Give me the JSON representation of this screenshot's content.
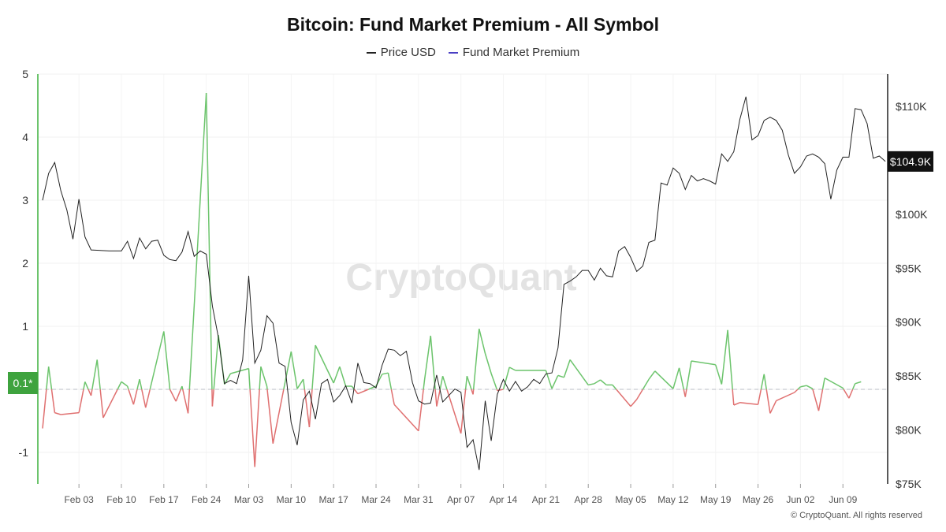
{
  "title": "Bitcoin: Fund Market Premium - All Symbol",
  "legend": [
    {
      "label": "Price USD",
      "color": "#222222"
    },
    {
      "label": "Fund Market Premium",
      "color": "#4a3fc4"
    }
  ],
  "watermark": "CryptoQuant",
  "copyright": "© CryptoQuant. All rights reserved",
  "price_badge": "$104.9K",
  "premium_badge": "0.1*",
  "colors": {
    "premium_positive": "#6cc46c",
    "premium_negative": "#e07070",
    "price": "#222222",
    "badge_green": "#3ea33e",
    "badge_dark": "#111111"
  },
  "chart_data": {
    "type": "line",
    "title": "Bitcoin: Fund Market Premium - All Symbol",
    "x_start": "2025-01-28",
    "x_end": "2025-06-13",
    "x_tick_labels": [
      "Feb 03",
      "Feb 10",
      "Feb 17",
      "Feb 24",
      "Mar 03",
      "Mar 10",
      "Mar 17",
      "Mar 24",
      "Mar 31",
      "Apr 07",
      "Apr 14",
      "Apr 21",
      "Apr 28",
      "May 05",
      "May 12",
      "May 19",
      "May 26",
      "Jun 02",
      "Jun 09"
    ],
    "x_tick_dates": [
      "2025-02-03",
      "2025-02-10",
      "2025-02-17",
      "2025-02-24",
      "2025-03-03",
      "2025-03-10",
      "2025-03-17",
      "2025-03-24",
      "2025-03-31",
      "2025-04-07",
      "2025-04-14",
      "2025-04-21",
      "2025-04-28",
      "2025-05-05",
      "2025-05-12",
      "2025-05-19",
      "2025-05-26",
      "2025-06-02",
      "2025-06-09"
    ],
    "y_left": {
      "min": -1.5,
      "max": 5,
      "ticks": [
        -1,
        0,
        1,
        2,
        3,
        4,
        5
      ],
      "tick_labels": [
        "-1",
        "0",
        "1",
        "2",
        "3",
        "4",
        "5"
      ]
    },
    "y_right": {
      "min": 75000,
      "max": 113000,
      "ticks": [
        75000,
        80000,
        85000,
        90000,
        95000,
        100000,
        105000,
        110000
      ],
      "tick_labels": [
        "$75K",
        "$80K",
        "$85K",
        "$90K",
        "$95K",
        "$100K",
        "$105K",
        "$110K"
      ]
    },
    "series": [
      {
        "name": "Price USD",
        "axis": "right",
        "points": [
          [
            "2025-01-28",
            101300
          ],
          [
            "2025-01-29",
            103800
          ],
          [
            "2025-01-30",
            104800
          ],
          [
            "2025-01-31",
            102200
          ],
          [
            "2025-02-01",
            100400
          ],
          [
            "2025-02-02",
            97700
          ],
          [
            "2025-02-03",
            101400
          ],
          [
            "2025-02-04",
            97900
          ],
          [
            "2025-02-05",
            96700
          ],
          [
            "2025-02-08",
            96600
          ],
          [
            "2025-02-10",
            96600
          ],
          [
            "2025-02-11",
            97500
          ],
          [
            "2025-02-12",
            95900
          ],
          [
            "2025-02-13",
            97800
          ],
          [
            "2025-02-14",
            96800
          ],
          [
            "2025-02-15",
            97500
          ],
          [
            "2025-02-16",
            97600
          ],
          [
            "2025-02-17",
            96200
          ],
          [
            "2025-02-18",
            95800
          ],
          [
            "2025-02-19",
            95700
          ],
          [
            "2025-02-20",
            96500
          ],
          [
            "2025-02-21",
            98400
          ],
          [
            "2025-02-22",
            96100
          ],
          [
            "2025-02-23",
            96600
          ],
          [
            "2025-02-24",
            96300
          ],
          [
            "2025-02-25",
            91500
          ],
          [
            "2025-02-26",
            88600
          ],
          [
            "2025-02-27",
            84300
          ],
          [
            "2025-02-28",
            84600
          ],
          [
            "2025-03-01",
            84300
          ],
          [
            "2025-03-02",
            86500
          ],
          [
            "2025-03-03",
            94300
          ],
          [
            "2025-03-04",
            86200
          ],
          [
            "2025-03-05",
            87400
          ],
          [
            "2025-03-06",
            90600
          ],
          [
            "2025-03-07",
            89900
          ],
          [
            "2025-03-08",
            86200
          ],
          [
            "2025-03-09",
            85900
          ],
          [
            "2025-03-10",
            80700
          ],
          [
            "2025-03-11",
            78600
          ],
          [
            "2025-03-12",
            82800
          ],
          [
            "2025-03-13",
            83600
          ],
          [
            "2025-03-14",
            81000
          ],
          [
            "2025-03-15",
            84300
          ],
          [
            "2025-03-16",
            84700
          ],
          [
            "2025-03-17",
            82600
          ],
          [
            "2025-03-18",
            83200
          ],
          [
            "2025-03-19",
            84100
          ],
          [
            "2025-03-20",
            82500
          ],
          [
            "2025-03-21",
            86200
          ],
          [
            "2025-03-22",
            84400
          ],
          [
            "2025-03-23",
            84300
          ],
          [
            "2025-03-24",
            83900
          ],
          [
            "2025-03-25",
            86000
          ],
          [
            "2025-03-26",
            87500
          ],
          [
            "2025-03-27",
            87400
          ],
          [
            "2025-03-28",
            86900
          ],
          [
            "2025-03-29",
            87300
          ],
          [
            "2025-03-30",
            84400
          ],
          [
            "2025-03-31",
            82700
          ],
          [
            "2025-04-01",
            82400
          ],
          [
            "2025-04-02",
            82500
          ],
          [
            "2025-04-03",
            85100
          ],
          [
            "2025-04-04",
            82600
          ],
          [
            "2025-04-05",
            83200
          ],
          [
            "2025-04-06",
            83800
          ],
          [
            "2025-04-07",
            83500
          ],
          [
            "2025-04-08",
            78400
          ],
          [
            "2025-04-09",
            79100
          ],
          [
            "2025-04-10",
            76300
          ],
          [
            "2025-04-11",
            82700
          ],
          [
            "2025-04-12",
            79000
          ],
          [
            "2025-04-13",
            83300
          ],
          [
            "2025-04-14",
            84700
          ],
          [
            "2025-04-15",
            83600
          ],
          [
            "2025-04-16",
            84500
          ],
          [
            "2025-04-17",
            83600
          ],
          [
            "2025-04-18",
            84000
          ],
          [
            "2025-04-19",
            84700
          ],
          [
            "2025-04-20",
            84300
          ],
          [
            "2025-04-21",
            85200
          ],
          [
            "2025-04-22",
            85300
          ],
          [
            "2025-04-23",
            87600
          ],
          [
            "2025-04-24",
            93500
          ],
          [
            "2025-04-25",
            93800
          ],
          [
            "2025-04-26",
            94200
          ],
          [
            "2025-04-27",
            94800
          ],
          [
            "2025-04-28",
            94800
          ],
          [
            "2025-04-29",
            93900
          ],
          [
            "2025-04-30",
            95000
          ],
          [
            "2025-05-01",
            94300
          ],
          [
            "2025-05-02",
            94200
          ],
          [
            "2025-05-03",
            96600
          ],
          [
            "2025-05-04",
            97000
          ],
          [
            "2025-05-05",
            96000
          ],
          [
            "2025-05-06",
            94700
          ],
          [
            "2025-05-07",
            95200
          ],
          [
            "2025-05-08",
            97400
          ],
          [
            "2025-05-09",
            97600
          ],
          [
            "2025-05-10",
            102900
          ],
          [
            "2025-05-11",
            102700
          ],
          [
            "2025-05-12",
            104300
          ],
          [
            "2025-05-13",
            103800
          ],
          [
            "2025-05-14",
            102300
          ],
          [
            "2025-05-15",
            103600
          ],
          [
            "2025-05-16",
            103100
          ],
          [
            "2025-05-17",
            103300
          ],
          [
            "2025-05-18",
            103100
          ],
          [
            "2025-05-19",
            102800
          ],
          [
            "2025-05-20",
            105600
          ],
          [
            "2025-05-21",
            104900
          ],
          [
            "2025-05-22",
            105800
          ],
          [
            "2025-05-23",
            108800
          ],
          [
            "2025-05-24",
            110900
          ],
          [
            "2025-05-25",
            106900
          ],
          [
            "2025-05-26",
            107300
          ],
          [
            "2025-05-27",
            108700
          ],
          [
            "2025-05-28",
            109000
          ],
          [
            "2025-05-29",
            108700
          ],
          [
            "2025-05-30",
            107800
          ],
          [
            "2025-05-31",
            105500
          ],
          [
            "2025-06-01",
            103800
          ],
          [
            "2025-06-02",
            104400
          ],
          [
            "2025-06-03",
            105400
          ],
          [
            "2025-06-04",
            105600
          ],
          [
            "2025-06-05",
            105300
          ],
          [
            "2025-06-06",
            104700
          ],
          [
            "2025-06-07",
            101400
          ],
          [
            "2025-06-08",
            104100
          ],
          [
            "2025-06-09",
            105300
          ],
          [
            "2025-06-10",
            105300
          ],
          [
            "2025-06-11",
            109800
          ],
          [
            "2025-06-12",
            109700
          ],
          [
            "2025-06-13",
            108400
          ],
          [
            "2025-06-14",
            105200
          ],
          [
            "2025-06-15",
            105400
          ],
          [
            "2025-06-16",
            104900
          ]
        ]
      },
      {
        "name": "Fund Market Premium",
        "axis": "left",
        "points": [
          [
            "2025-01-28",
            -0.62
          ],
          [
            "2025-01-29",
            0.36
          ],
          [
            "2025-01-30",
            -0.37
          ],
          [
            "2025-01-31",
            -0.4
          ],
          [
            "2025-02-03",
            -0.37
          ],
          [
            "2025-02-04",
            0.12
          ],
          [
            "2025-02-05",
            -0.1
          ],
          [
            "2025-02-06",
            0.47
          ],
          [
            "2025-02-07",
            -0.45
          ],
          [
            "2025-02-10",
            0.12
          ],
          [
            "2025-02-11",
            0.05
          ],
          [
            "2025-02-12",
            -0.24
          ],
          [
            "2025-02-13",
            0.16
          ],
          [
            "2025-02-14",
            -0.29
          ],
          [
            "2025-02-17",
            0.92
          ],
          [
            "2025-02-18",
            0.0
          ],
          [
            "2025-02-19",
            -0.19
          ],
          [
            "2025-02-20",
            0.05
          ],
          [
            "2025-02-21",
            -0.38
          ],
          [
            "2025-02-24",
            4.7
          ],
          [
            "2025-02-25",
            -0.27
          ],
          [
            "2025-02-26",
            0.86
          ],
          [
            "2025-02-27",
            0.08
          ],
          [
            "2025-02-28",
            0.25
          ],
          [
            "2025-03-03",
            0.33
          ],
          [
            "2025-03-04",
            -1.23
          ],
          [
            "2025-03-05",
            0.36
          ],
          [
            "2025-03-06",
            0.05
          ],
          [
            "2025-03-07",
            -0.86
          ],
          [
            "2025-03-10",
            0.6
          ],
          [
            "2025-03-11",
            0.01
          ],
          [
            "2025-03-12",
            0.16
          ],
          [
            "2025-03-13",
            -0.6
          ],
          [
            "2025-03-14",
            0.7
          ],
          [
            "2025-03-17",
            0.1
          ],
          [
            "2025-03-18",
            0.36
          ],
          [
            "2025-03-19",
            0.05
          ],
          [
            "2025-03-20",
            0.05
          ],
          [
            "2025-03-21",
            -0.07
          ],
          [
            "2025-03-24",
            0.05
          ],
          [
            "2025-03-25",
            0.24
          ],
          [
            "2025-03-26",
            0.26
          ],
          [
            "2025-03-27",
            -0.24
          ],
          [
            "2025-03-31",
            -0.66
          ],
          [
            "2025-04-01",
            0.15
          ],
          [
            "2025-04-02",
            0.85
          ],
          [
            "2025-04-03",
            -0.27
          ],
          [
            "2025-04-04",
            0.21
          ],
          [
            "2025-04-07",
            -0.7
          ],
          [
            "2025-04-08",
            0.21
          ],
          [
            "2025-04-09",
            -0.08
          ],
          [
            "2025-04-10",
            0.96
          ],
          [
            "2025-04-11",
            0.57
          ],
          [
            "2025-04-12",
            0.25
          ],
          [
            "2025-04-13",
            -0.02
          ],
          [
            "2025-04-14",
            0.0
          ],
          [
            "2025-04-15",
            0.35
          ],
          [
            "2025-04-16",
            0.3
          ],
          [
            "2025-04-21",
            0.3
          ],
          [
            "2025-04-22",
            0.01
          ],
          [
            "2025-04-23",
            0.22
          ],
          [
            "2025-04-24",
            0.19
          ],
          [
            "2025-04-25",
            0.47
          ],
          [
            "2025-04-28",
            0.07
          ],
          [
            "2025-04-29",
            0.09
          ],
          [
            "2025-04-30",
            0.15
          ],
          [
            "2025-05-01",
            0.07
          ],
          [
            "2025-05-02",
            0.07
          ],
          [
            "2025-05-05",
            -0.27
          ],
          [
            "2025-05-06",
            -0.16
          ],
          [
            "2025-05-07",
            0.0
          ],
          [
            "2025-05-08",
            0.16
          ],
          [
            "2025-05-09",
            0.29
          ],
          [
            "2025-05-12",
            0.01
          ],
          [
            "2025-05-13",
            0.34
          ],
          [
            "2025-05-14",
            -0.12
          ],
          [
            "2025-05-15",
            0.45
          ],
          [
            "2025-05-19",
            0.39
          ],
          [
            "2025-05-20",
            0.08
          ],
          [
            "2025-05-21",
            0.94
          ],
          [
            "2025-05-22",
            -0.25
          ],
          [
            "2025-05-23",
            -0.21
          ],
          [
            "2025-05-26",
            -0.24
          ],
          [
            "2025-05-27",
            0.24
          ],
          [
            "2025-05-28",
            -0.38
          ],
          [
            "2025-05-29",
            -0.18
          ],
          [
            "2025-06-01",
            -0.05
          ],
          [
            "2025-06-02",
            0.04
          ],
          [
            "2025-06-03",
            0.06
          ],
          [
            "2025-06-04",
            0.01
          ],
          [
            "2025-06-05",
            -0.34
          ],
          [
            "2025-06-06",
            0.18
          ],
          [
            "2025-06-09",
            0.02
          ],
          [
            "2025-06-10",
            -0.14
          ],
          [
            "2025-06-11",
            0.09
          ],
          [
            "2025-06-12",
            0.12
          ]
        ]
      }
    ]
  }
}
